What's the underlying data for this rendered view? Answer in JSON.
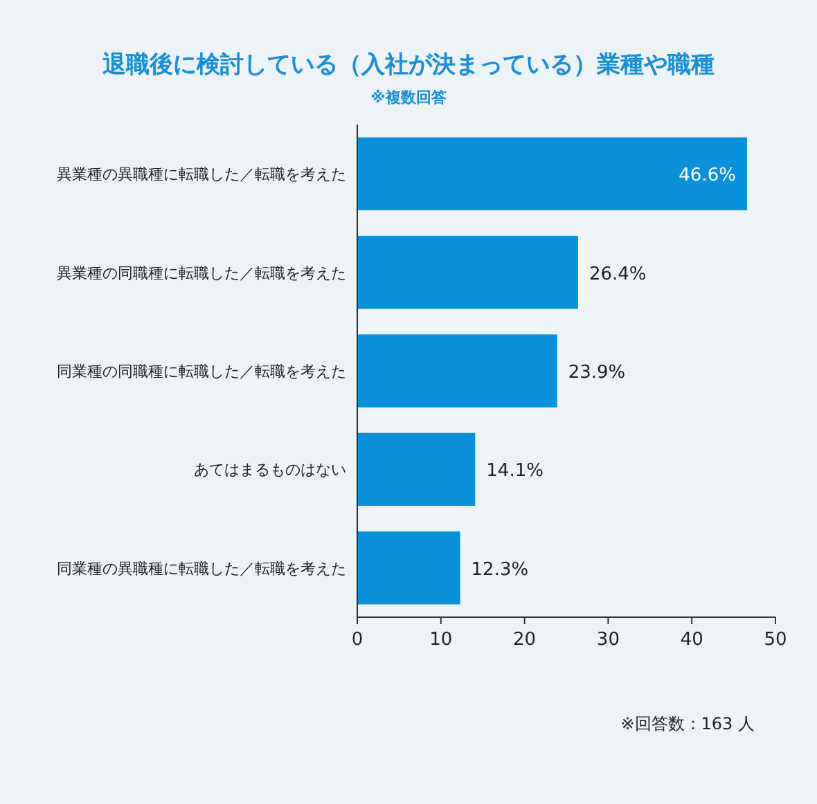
{
  "chart_data": {
    "type": "bar",
    "orientation": "horizontal",
    "title": "退職後に検討している（入社が決まっている）業種や職種",
    "subtitle": "※複数回答",
    "categories": [
      "異業種の異職種に転職した／転職を考えた",
      "異業種の同職種に転職した／転職を考えた",
      "同業種の同職種に転職した／転職を考えた",
      "あてはまるものはない",
      "同業種の異職種に転職した／転職を考えた"
    ],
    "values": [
      46.6,
      26.4,
      23.9,
      14.1,
      12.3
    ],
    "value_labels": [
      "46.6%",
      "26.4%",
      "23.9%",
      "14.1%",
      "12.3%"
    ],
    "color": "#0a90d8",
    "xlim": [
      0,
      50
    ],
    "xticks": [
      0,
      10,
      20,
      30,
      40,
      50
    ],
    "grid": false,
    "annotations": [
      "※回答数：163 人"
    ]
  }
}
